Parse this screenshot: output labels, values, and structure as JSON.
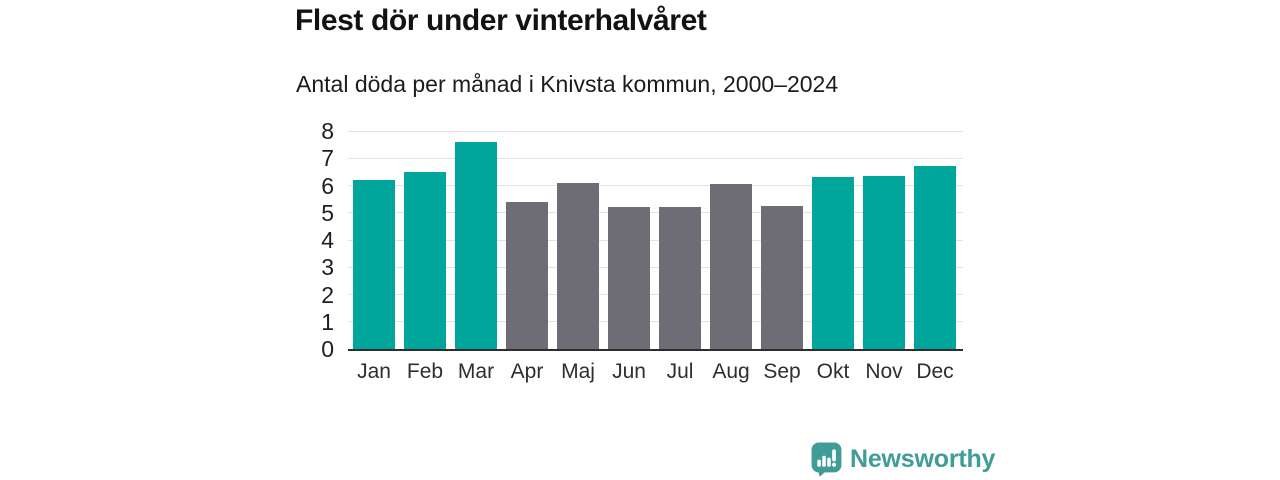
{
  "header": {
    "title": "Flest dör under vinterhalvåret",
    "subtitle": "Antal döda per månad i Knivsta kommun, 2000–2024"
  },
  "chart_data": {
    "type": "bar",
    "title": "Flest dör under vinterhalvåret",
    "subtitle": "Antal döda per månad i Knivsta kommun, 2000–2024",
    "categories": [
      "Jan",
      "Feb",
      "Mar",
      "Apr",
      "Maj",
      "Jun",
      "Jul",
      "Aug",
      "Sep",
      "Okt",
      "Nov",
      "Dec"
    ],
    "values": [
      6.2,
      6.5,
      7.6,
      5.4,
      6.1,
      5.2,
      5.2,
      6.05,
      5.25,
      6.3,
      6.35,
      6.7
    ],
    "groups": [
      "winter",
      "winter",
      "winter",
      "summer",
      "summer",
      "summer",
      "summer",
      "summer",
      "summer",
      "winter",
      "winter",
      "winter"
    ],
    "group_colors": {
      "winter": "#00a69c",
      "summer": "#6e6c74"
    },
    "xlabel": "",
    "ylabel": "",
    "ylim": [
      0,
      8
    ],
    "yticks": [
      0,
      1,
      2,
      3,
      4,
      5,
      6,
      7,
      8
    ],
    "grid": "horizontal",
    "legend": "none",
    "axis_color": "#2d2d2d",
    "gridline_color": "#e3e3e3"
  },
  "footer": {
    "brand": "Newsworthy",
    "brand_color": "#3f9c97",
    "logo_icon": "speech-bubble-bar-chart"
  }
}
